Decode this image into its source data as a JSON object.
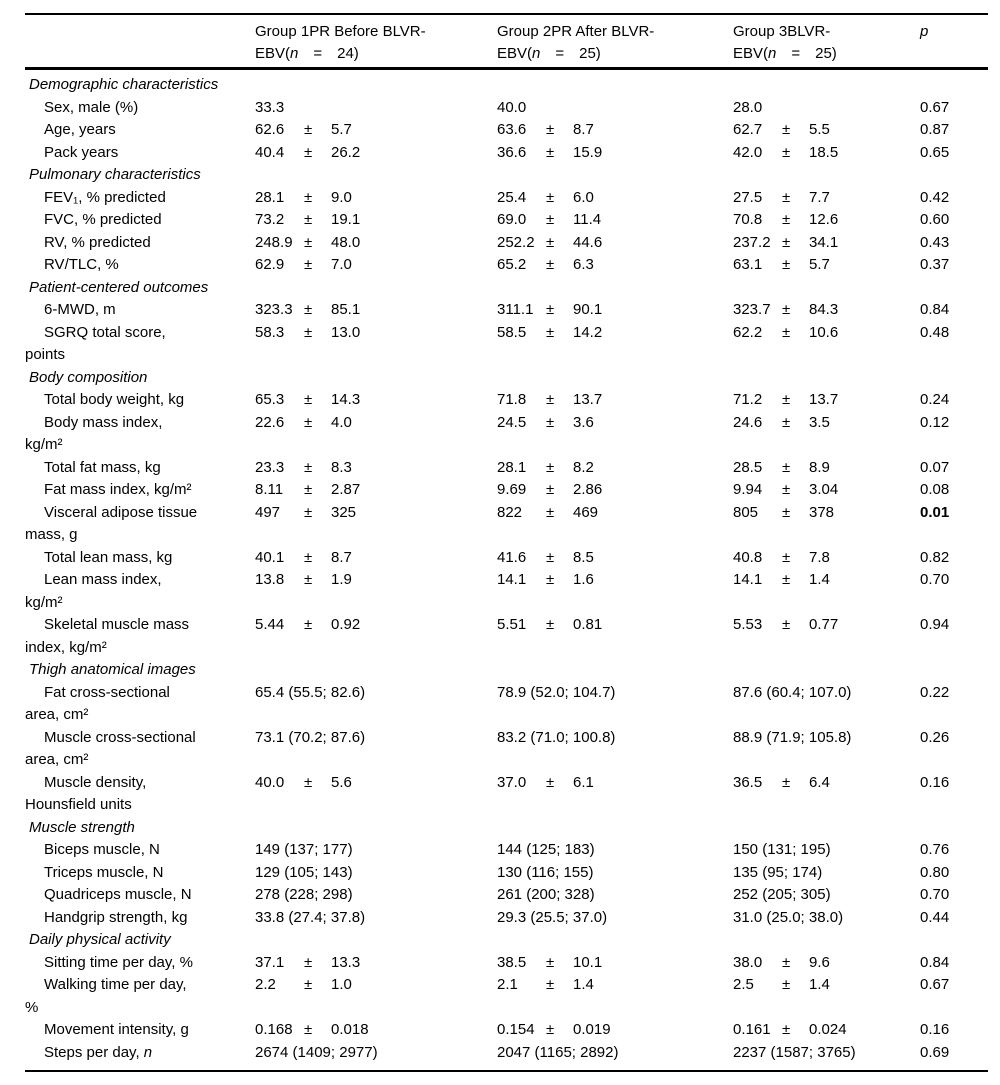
{
  "table": {
    "plus_minus": "±",
    "header": {
      "groups": [
        {
          "line1": "Group 1PR Before BLVR-",
          "line2_prefix": "EBV(",
          "line2_n": "n",
          "line2_rest": "  =  24)"
        },
        {
          "line1": "Group 2PR After BLVR-",
          "line2_prefix": "EBV(",
          "line2_n": "n",
          "line2_rest": "  =  25)"
        },
        {
          "line1": "Group 3BLVR-",
          "line2_prefix": "EBV(",
          "line2_n": "n",
          "line2_rest": "  =  25)"
        }
      ],
      "p_label": "p"
    },
    "rows": [
      {
        "type": "section",
        "label": "Demographic characteristics"
      },
      {
        "type": "data",
        "label": "Sex, male (%)",
        "cells": [
          {
            "text": "33.3"
          },
          {
            "text": "40.0"
          },
          {
            "text": "28.0"
          }
        ],
        "p": "0.67"
      },
      {
        "type": "data",
        "label": "Age, years",
        "cells": [
          {
            "mean": "62.6",
            "sd": "5.7"
          },
          {
            "mean": "63.6",
            "sd": "8.7"
          },
          {
            "mean": "62.7",
            "sd": "5.5"
          }
        ],
        "p": "0.87"
      },
      {
        "type": "data",
        "label": "Pack years",
        "cells": [
          {
            "mean": "40.4",
            "sd": "26.2"
          },
          {
            "mean": "36.6",
            "sd": "15.9"
          },
          {
            "mean": "42.0",
            "sd": "18.5"
          }
        ],
        "p": "0.65"
      },
      {
        "type": "section",
        "label": "Pulmonary characteristics"
      },
      {
        "type": "data",
        "label": "FEV₁, % predicted",
        "cells": [
          {
            "mean": "28.1",
            "sd": "9.0"
          },
          {
            "mean": "25.4",
            "sd": "6.0"
          },
          {
            "mean": "27.5",
            "sd": "7.7"
          }
        ],
        "p": "0.42"
      },
      {
        "type": "data",
        "label": "FVC, % predicted",
        "cells": [
          {
            "mean": "73.2",
            "sd": "19.1"
          },
          {
            "mean": "69.0",
            "sd": "11.4"
          },
          {
            "mean": "70.8",
            "sd": "12.6"
          }
        ],
        "p": "0.60"
      },
      {
        "type": "data",
        "label": "RV, % predicted",
        "cells": [
          {
            "mean": "248.9",
            "sd": "48.0"
          },
          {
            "mean": "252.2",
            "sd": "44.6"
          },
          {
            "mean": "237.2",
            "sd": "34.1"
          }
        ],
        "p": "0.43"
      },
      {
        "type": "data",
        "label": "RV/TLC, %",
        "cells": [
          {
            "mean": "62.9",
            "sd": "7.0"
          },
          {
            "mean": "65.2",
            "sd": "6.3"
          },
          {
            "mean": "63.1",
            "sd": "5.7"
          }
        ],
        "p": "0.37"
      },
      {
        "type": "section",
        "label": "Patient-centered outcomes"
      },
      {
        "type": "data",
        "label": "6-MWD, m",
        "cells": [
          {
            "mean": "323.3",
            "sd": "85.1"
          },
          {
            "mean": "311.1",
            "sd": "90.1"
          },
          {
            "mean": "323.7",
            "sd": "84.3"
          }
        ],
        "p": "0.84"
      },
      {
        "type": "data",
        "label": "SGRQ total score,\npoints",
        "cells": [
          {
            "mean": "58.3",
            "sd": "13.0"
          },
          {
            "mean": "58.5",
            "sd": "14.2"
          },
          {
            "mean": "62.2",
            "sd": "10.6"
          }
        ],
        "p": "0.48"
      },
      {
        "type": "section",
        "label": "Body composition"
      },
      {
        "type": "data",
        "label": "Total body weight, kg",
        "cells": [
          {
            "mean": "65.3",
            "sd": "14.3"
          },
          {
            "mean": "71.8",
            "sd": "13.7"
          },
          {
            "mean": "71.2",
            "sd": "13.7"
          }
        ],
        "p": "0.24"
      },
      {
        "type": "data",
        "label": "Body mass index,\nkg/m²",
        "cells": [
          {
            "mean": "22.6",
            "sd": "4.0"
          },
          {
            "mean": "24.5",
            "sd": "3.6"
          },
          {
            "mean": "24.6",
            "sd": "3.5"
          }
        ],
        "p": "0.12"
      },
      {
        "type": "data",
        "label": "Total fat mass, kg",
        "cells": [
          {
            "mean": "23.3",
            "sd": "8.3"
          },
          {
            "mean": "28.1",
            "sd": "8.2"
          },
          {
            "mean": "28.5",
            "sd": "8.9"
          }
        ],
        "p": "0.07"
      },
      {
        "type": "data",
        "label": "Fat mass index, kg/m²",
        "cells": [
          {
            "mean": "8.11",
            "sd": "2.87"
          },
          {
            "mean": "9.69",
            "sd": "2.86"
          },
          {
            "mean": "9.94",
            "sd": "3.04"
          }
        ],
        "p": "0.08"
      },
      {
        "type": "data",
        "label": "Visceral adipose tissue\nmass, g",
        "cells": [
          {
            "mean": "497",
            "sd": "325"
          },
          {
            "mean": "822",
            "sd": "469"
          },
          {
            "mean": "805",
            "sd": "378"
          }
        ],
        "p": "0.01",
        "p_bold": true
      },
      {
        "type": "data",
        "label": "Total lean mass, kg",
        "cells": [
          {
            "mean": "40.1",
            "sd": "8.7"
          },
          {
            "mean": "41.6",
            "sd": "8.5"
          },
          {
            "mean": "40.8",
            "sd": "7.8"
          }
        ],
        "p": "0.82"
      },
      {
        "type": "data",
        "label": "Lean mass index,\nkg/m²",
        "cells": [
          {
            "mean": "13.8",
            "sd": "1.9"
          },
          {
            "mean": "14.1",
            "sd": "1.6"
          },
          {
            "mean": "14.1",
            "sd": "1.4"
          }
        ],
        "p": "0.70"
      },
      {
        "type": "data",
        "label": "Skeletal muscle mass\nindex, kg/m²",
        "cells": [
          {
            "mean": "5.44",
            "sd": "0.92"
          },
          {
            "mean": "5.51",
            "sd": "0.81"
          },
          {
            "mean": "5.53",
            "sd": "0.77"
          }
        ],
        "p": "0.94"
      },
      {
        "type": "section",
        "label": "Thigh anatomical images"
      },
      {
        "type": "data",
        "label": "Fat cross-sectional\narea, cm²",
        "cells": [
          {
            "text": "65.4 (55.5; 82.6)"
          },
          {
            "text": "78.9 (52.0; 104.7)"
          },
          {
            "text": "87.6 (60.4; 107.0)"
          }
        ],
        "p": "0.22"
      },
      {
        "type": "data",
        "label": "Muscle cross-sectional\narea, cm²",
        "cells": [
          {
            "text": "73.1 (70.2; 87.6)"
          },
          {
            "text": "83.2 (71.0; 100.8)"
          },
          {
            "text": "88.9 (71.9; 105.8)"
          }
        ],
        "p": "0.26"
      },
      {
        "type": "data",
        "label": "Muscle density,\nHounsfield units",
        "cells": [
          {
            "mean": "40.0",
            "sd": "5.6"
          },
          {
            "mean": "37.0",
            "sd": "6.1"
          },
          {
            "mean": "36.5",
            "sd": "6.4"
          }
        ],
        "p": "0.16"
      },
      {
        "type": "section",
        "label": "Muscle strength"
      },
      {
        "type": "data",
        "label": "Biceps muscle, N",
        "cells": [
          {
            "text": "149 (137; 177)"
          },
          {
            "text": "144 (125; 183)"
          },
          {
            "text": "150 (131; 195)"
          }
        ],
        "p": "0.76"
      },
      {
        "type": "data",
        "label": "Triceps muscle, N",
        "cells": [
          {
            "text": "129 (105; 143)"
          },
          {
            "text": "130 (116; 155)"
          },
          {
            "text": "135 (95; 174)"
          }
        ],
        "p": "0.80"
      },
      {
        "type": "data",
        "label": "Quadriceps muscle, N",
        "cells": [
          {
            "text": "278 (228; 298)"
          },
          {
            "text": "261 (200; 328)"
          },
          {
            "text": "252 (205; 305)"
          }
        ],
        "p": "0.70"
      },
      {
        "type": "data",
        "label": "Handgrip strength, kg",
        "cells": [
          {
            "text": "33.8 (27.4; 37.8)"
          },
          {
            "text": "29.3 (25.5; 37.0)"
          },
          {
            "text": "31.0 (25.0; 38.0)"
          }
        ],
        "p": "0.44"
      },
      {
        "type": "section",
        "label": "Daily physical activity"
      },
      {
        "type": "data",
        "label": "Sitting time per day, %",
        "cells": [
          {
            "mean": "37.1",
            "sd": "13.3"
          },
          {
            "mean": "38.5",
            "sd": "10.1"
          },
          {
            "mean": "38.0",
            "sd": "9.6"
          }
        ],
        "p": "0.84"
      },
      {
        "type": "data",
        "label": "Walking time per day,\n%",
        "cells": [
          {
            "mean": "2.2",
            "sd": "1.0"
          },
          {
            "mean": "2.1",
            "sd": "1.4"
          },
          {
            "mean": "2.5",
            "sd": "1.4"
          }
        ],
        "p": "0.67"
      },
      {
        "type": "data",
        "label": "Movement intensity, g",
        "cells": [
          {
            "mean": "0.168",
            "sd": "0.018"
          },
          {
            "mean": "0.154",
            "sd": "0.019"
          },
          {
            "mean": "0.161",
            "sd": "0.024"
          }
        ],
        "p": "0.16"
      },
      {
        "type": "data",
        "label": "Steps per day, ",
        "label_italic": "n",
        "cells": [
          {
            "text": "2674 (1409; 2977)"
          },
          {
            "text": "2047 (1165; 2892)"
          },
          {
            "text": "2237 (1587; 3765)"
          }
        ],
        "p": "0.69"
      }
    ]
  }
}
